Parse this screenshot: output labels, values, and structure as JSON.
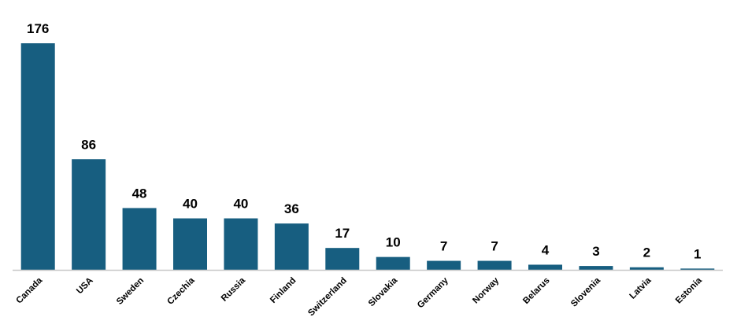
{
  "chart_data": {
    "type": "bar",
    "categories": [
      "Canada",
      "USA",
      "Sweden",
      "Czechia",
      "Russia",
      "Finland",
      "Switzerland",
      "Slovakia",
      "Germany",
      "Norway",
      "Belarus",
      "Slovenia",
      "Latvia",
      "Estonia"
    ],
    "values": [
      176,
      86,
      48,
      40,
      40,
      36,
      17,
      10,
      7,
      7,
      4,
      3,
      2,
      1
    ],
    "title": "",
    "xlabel": "",
    "ylabel": "",
    "ylim": [
      0,
      176
    ],
    "grid": false,
    "legend": "none",
    "show_data_labels": true,
    "bar_color": "#175e80",
    "axis_color": "#c8c8c8"
  }
}
